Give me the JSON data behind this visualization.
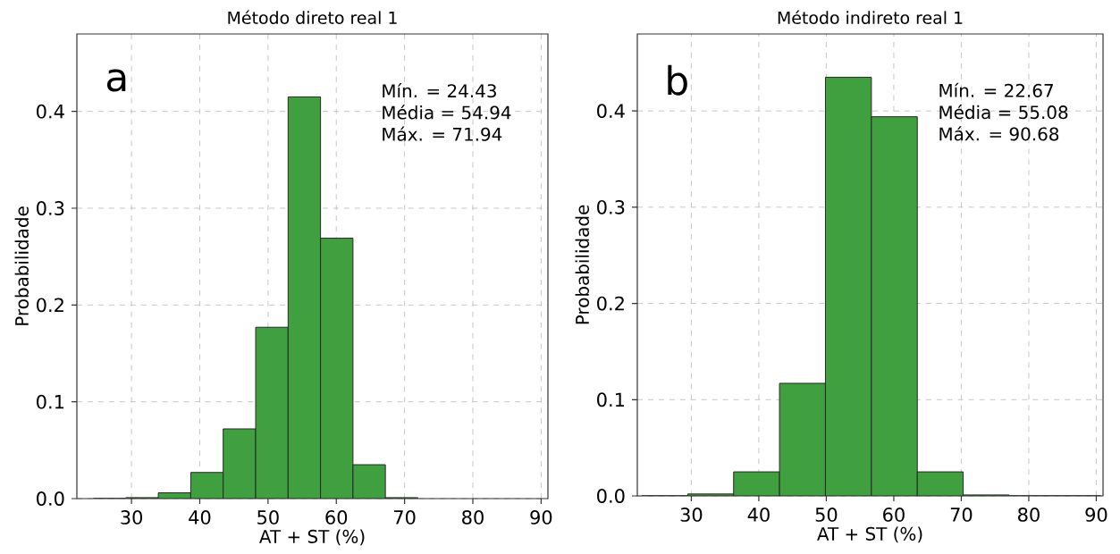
{
  "chart_data": [
    {
      "type": "histogram",
      "title": "Método direto real 1",
      "xlabel": "AT + ST  (%)",
      "ylabel": "Probabilidade",
      "annotations": [
        "a",
        "Mín. = 24.43",
        "Média = 54.94",
        "Máx. = 71.94"
      ],
      "bins": [
        24.43,
        29.18,
        33.93,
        38.68,
        43.43,
        48.19,
        52.94,
        57.69,
        62.44,
        67.19,
        71.94
      ],
      "values": [
        0,
        0.001,
        0.006,
        0.027,
        0.072,
        0.177,
        0.415,
        0.269,
        0.035,
        0.001
      ],
      "color": "#40a040",
      "xlim": [
        22,
        91
      ],
      "ylim": [
        0,
        0.48
      ],
      "xticks": [
        30,
        40,
        50,
        60,
        70,
        80,
        90
      ],
      "yticks": [
        {
          "value": 0,
          "label": "0.0"
        },
        0.1,
        0.2,
        0.3,
        0.4
      ],
      "grid": true
    },
    {
      "type": "histogram",
      "title": "Método indireto real 1",
      "xlabel": "AT + ST  (%)",
      "ylabel": "Probabilidade",
      "annotations": [
        "b",
        "Mín. = 22.67",
        "Média = 55.08",
        "Máx. = 90.68"
      ],
      "bins": [
        22.67,
        29.47,
        36.27,
        43.07,
        49.87,
        56.68,
        63.48,
        70.28,
        77.08,
        83.88,
        90.68
      ],
      "values": [
        0,
        0.002,
        0.025,
        0.117,
        0.435,
        0.394,
        0.025,
        0.001,
        0,
        0
      ],
      "color": "#40a040",
      "xlim": [
        22,
        91
      ],
      "ylim": [
        0,
        0.48
      ],
      "xticks": [
        30,
        40,
        50,
        60,
        70,
        80,
        90
      ],
      "yticks": [
        {
          "value": 0,
          "label": "0.0"
        },
        0.1,
        0.2,
        0.3,
        0.4
      ],
      "grid": true
    }
  ]
}
